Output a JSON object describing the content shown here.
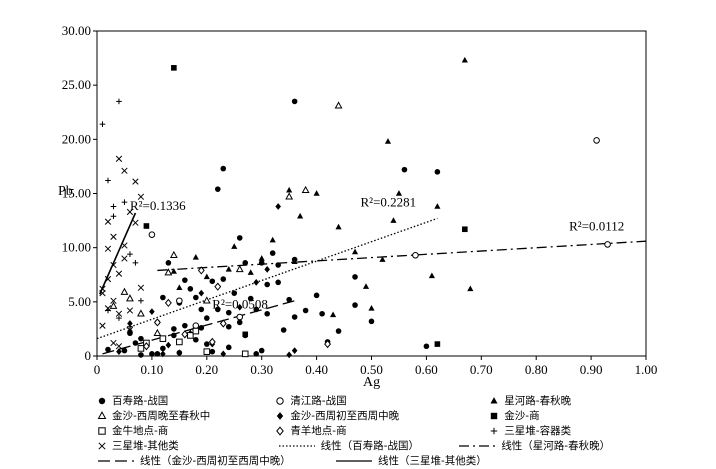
{
  "chart_data": {
    "type": "scatter",
    "xlabel": "Ag",
    "ylabel": "Pb",
    "xlim": [
      0,
      1.0
    ],
    "ylim": [
      0,
      30
    ],
    "x_ticks": [
      "0",
      "0.10",
      "0.20",
      "0.30",
      "0.40",
      "0.50",
      "0.60",
      "0.70",
      "0.80",
      "0.90",
      "1.00"
    ],
    "y_ticks": [
      "0",
      "5.00",
      "10.00",
      "15.00",
      "20.00",
      "25.00",
      "30.00"
    ],
    "grid": false,
    "legend_position": "bottom",
    "series": [
      {
        "name": "百寿路-战国",
        "marker": "filled-circle",
        "x": [
          0.02,
          0.05,
          0.06,
          0.08,
          0.1,
          0.11,
          0.12,
          0.13,
          0.14,
          0.15,
          0.15,
          0.16,
          0.17,
          0.18,
          0.19,
          0.2,
          0.2,
          0.21,
          0.22,
          0.22,
          0.23,
          0.23,
          0.24,
          0.24,
          0.25,
          0.26,
          0.27,
          0.27,
          0.28,
          0.29,
          0.3,
          0.3,
          0.31,
          0.32,
          0.33,
          0.34,
          0.35,
          0.36,
          0.36,
          0.38,
          0.4,
          0.41,
          0.42,
          0.47,
          0.47,
          0.5,
          0.56,
          0.6,
          0.62,
          0.08,
          0.12,
          0.16,
          0.19,
          0.26,
          0.33,
          0.07,
          0.14,
          0.21,
          0.29,
          0.36,
          0.44,
          0.11,
          0.18,
          0.24,
          0.31
        ],
        "y": [
          0.6,
          0.5,
          2.1,
          0.1,
          0.2,
          3.1,
          0.7,
          8.6,
          2.5,
          4.9,
          0.3,
          2.8,
          6.2,
          5.4,
          2.6,
          1.1,
          3.5,
          6.9,
          15.4,
          4.3,
          17.3,
          7.1,
          0.8,
          2.7,
          5.8,
          3.1,
          8.6,
          1.9,
          5.3,
          4.3,
          8.6,
          0.5,
          6.6,
          9.5,
          6.8,
          2.4,
          5.2,
          8.9,
          23.5,
          4.2,
          5.6,
          3.9,
          1.3,
          7.3,
          4.7,
          3.2,
          17.2,
          0.9,
          17.0,
          1.6,
          5.4,
          7.0,
          4.3,
          10.9,
          8.4,
          1.2,
          1.9,
          0.4,
          0.2,
          3.6,
          2.3,
          0.2,
          1.5,
          4.0,
          3.9
        ],
        "color": "#000000"
      },
      {
        "name": "清江路-战国",
        "marker": "open-circle",
        "x": [
          0.1,
          0.15,
          0.18,
          0.26,
          0.58,
          0.91,
          0.93
        ],
        "y": [
          11.2,
          5.1,
          2.8,
          3.6,
          9.3,
          19.9,
          10.3
        ],
        "color": "#000000"
      },
      {
        "name": "星河路-春秋晚",
        "marker": "filled-triangle",
        "x": [
          0.14,
          0.18,
          0.24,
          0.28,
          0.32,
          0.35,
          0.36,
          0.4,
          0.44,
          0.47,
          0.49,
          0.52,
          0.53,
          0.55,
          0.61,
          0.62,
          0.67,
          0.68,
          0.54,
          0.25,
          0.2,
          0.15,
          0.3,
          0.37,
          0.43,
          0.5
        ],
        "y": [
          7.8,
          9.1,
          8.0,
          7.7,
          10.7,
          15.3,
          8.7,
          15.0,
          11.9,
          9.6,
          6.4,
          8.9,
          19.8,
          15.0,
          7.4,
          13.8,
          27.3,
          6.2,
          12.5,
          10.1,
          7.3,
          6.3,
          9.0,
          12.9,
          3.8,
          4.4
        ],
        "color": "#000000"
      },
      {
        "name": "金沙-西周晚至春秋中",
        "marker": "open-triangle",
        "x": [
          0.03,
          0.05,
          0.06,
          0.08,
          0.11,
          0.13,
          0.14,
          0.2,
          0.26,
          0.35,
          0.38,
          0.44
        ],
        "y": [
          4.6,
          5.9,
          5.3,
          3.9,
          2.1,
          7.7,
          9.3,
          5.1,
          8.0,
          14.7,
          15.3,
          23.1
        ],
        "color": "#000000"
      },
      {
        "name": "金沙-西周初至西周中晚",
        "marker": "filled-diamond",
        "x": [
          0.04,
          0.06,
          0.1,
          0.13,
          0.15,
          0.17,
          0.19,
          0.21,
          0.23,
          0.26,
          0.29,
          0.31,
          0.33,
          0.35,
          0.36,
          0.06,
          0.12
        ],
        "y": [
          0.4,
          2.3,
          4.1,
          1.0,
          0.3,
          2.1,
          5.8,
          1.1,
          0.2,
          4.5,
          6.8,
          8.0,
          13.8,
          0.1,
          0.5,
          3.0,
          0.2
        ],
        "color": "#000000"
      },
      {
        "name": "金沙-商",
        "marker": "filled-square",
        "x": [
          0.09,
          0.14,
          0.27,
          0.62,
          0.67
        ],
        "y": [
          12.0,
          26.6,
          2.0,
          1.1,
          11.7
        ],
        "color": "#000000"
      },
      {
        "name": "金牛地点-商",
        "marker": "open-square",
        "x": [
          0.08,
          0.09,
          0.12,
          0.15,
          0.17,
          0.18,
          0.2,
          0.27
        ],
        "y": [
          0.7,
          1.2,
          1.6,
          1.3,
          1.9,
          2.3,
          0.4,
          0.2
        ],
        "color": "#000000"
      },
      {
        "name": "青羊地点-商",
        "marker": "open-diamond",
        "x": [
          0.09,
          0.11,
          0.13,
          0.16,
          0.19,
          0.21,
          0.23,
          0.22,
          0.42
        ],
        "y": [
          0.9,
          3.1,
          4.9,
          2.0,
          7.9,
          1.3,
          3.0,
          6.4,
          1.1
        ],
        "color": "#000000"
      },
      {
        "name": "三星堆-容器类",
        "marker": "plus",
        "x": [
          0.01,
          0.02,
          0.03,
          0.03,
          0.04,
          0.05,
          0.06,
          0.07,
          0.08,
          0.04,
          0.06,
          0.02
        ],
        "y": [
          21.4,
          16.2,
          13.8,
          12.9,
          23.5,
          14.2,
          9.4,
          8.6,
          5.1,
          3.5,
          2.7,
          4.2
        ],
        "color": "#000000"
      },
      {
        "name": "三星堆-其他类",
        "marker": "cross",
        "x": [
          0.01,
          0.01,
          0.02,
          0.02,
          0.03,
          0.03,
          0.03,
          0.04,
          0.04,
          0.04,
          0.05,
          0.05,
          0.05,
          0.06,
          0.06,
          0.07,
          0.07,
          0.08,
          0.08,
          0.02,
          0.03,
          0.01,
          0.02,
          0.04,
          0.06
        ],
        "y": [
          2.8,
          6.2,
          9.9,
          12.4,
          11.0,
          8.4,
          5.1,
          7.6,
          18.2,
          3.9,
          10.2,
          9.0,
          17.1,
          13.3,
          4.2,
          12.3,
          16.1,
          6.3,
          14.7,
          4.4,
          1.2,
          5.8,
          7.1,
          0.9,
          2.4
        ],
        "color": "#000000"
      }
    ],
    "trendlines": [
      {
        "name": "线性（百寿路-战国）",
        "style": "dotted",
        "x": [
          0,
          0.62
        ],
        "y": [
          1.6,
          12.7
        ],
        "r2_label": "R²=0.2281",
        "label_at": [
          0.48,
          13.8
        ]
      },
      {
        "name": "线性（星河路-春秋晚）",
        "style": "dash-dot",
        "x": [
          0.11,
          1.0
        ],
        "y": [
          7.9,
          10.6
        ],
        "r2_label": "R²=0.0112",
        "label_at": [
          0.86,
          11.6
        ]
      },
      {
        "name": "线性（金沙-西周初至西周中晚）",
        "style": "long-dash",
        "x": [
          0.01,
          0.36
        ],
        "y": [
          0.2,
          5.1
        ],
        "r2_label": "R²=0.0508",
        "label_at": [
          0.21,
          4.4
        ]
      },
      {
        "name": "线性（三星堆-其他类）",
        "style": "solid",
        "x": [
          0.005,
          0.07
        ],
        "y": [
          5.7,
          13.2
        ],
        "r2_label": "R²=0.1336",
        "label_at": [
          0.06,
          13.5
        ]
      }
    ]
  }
}
